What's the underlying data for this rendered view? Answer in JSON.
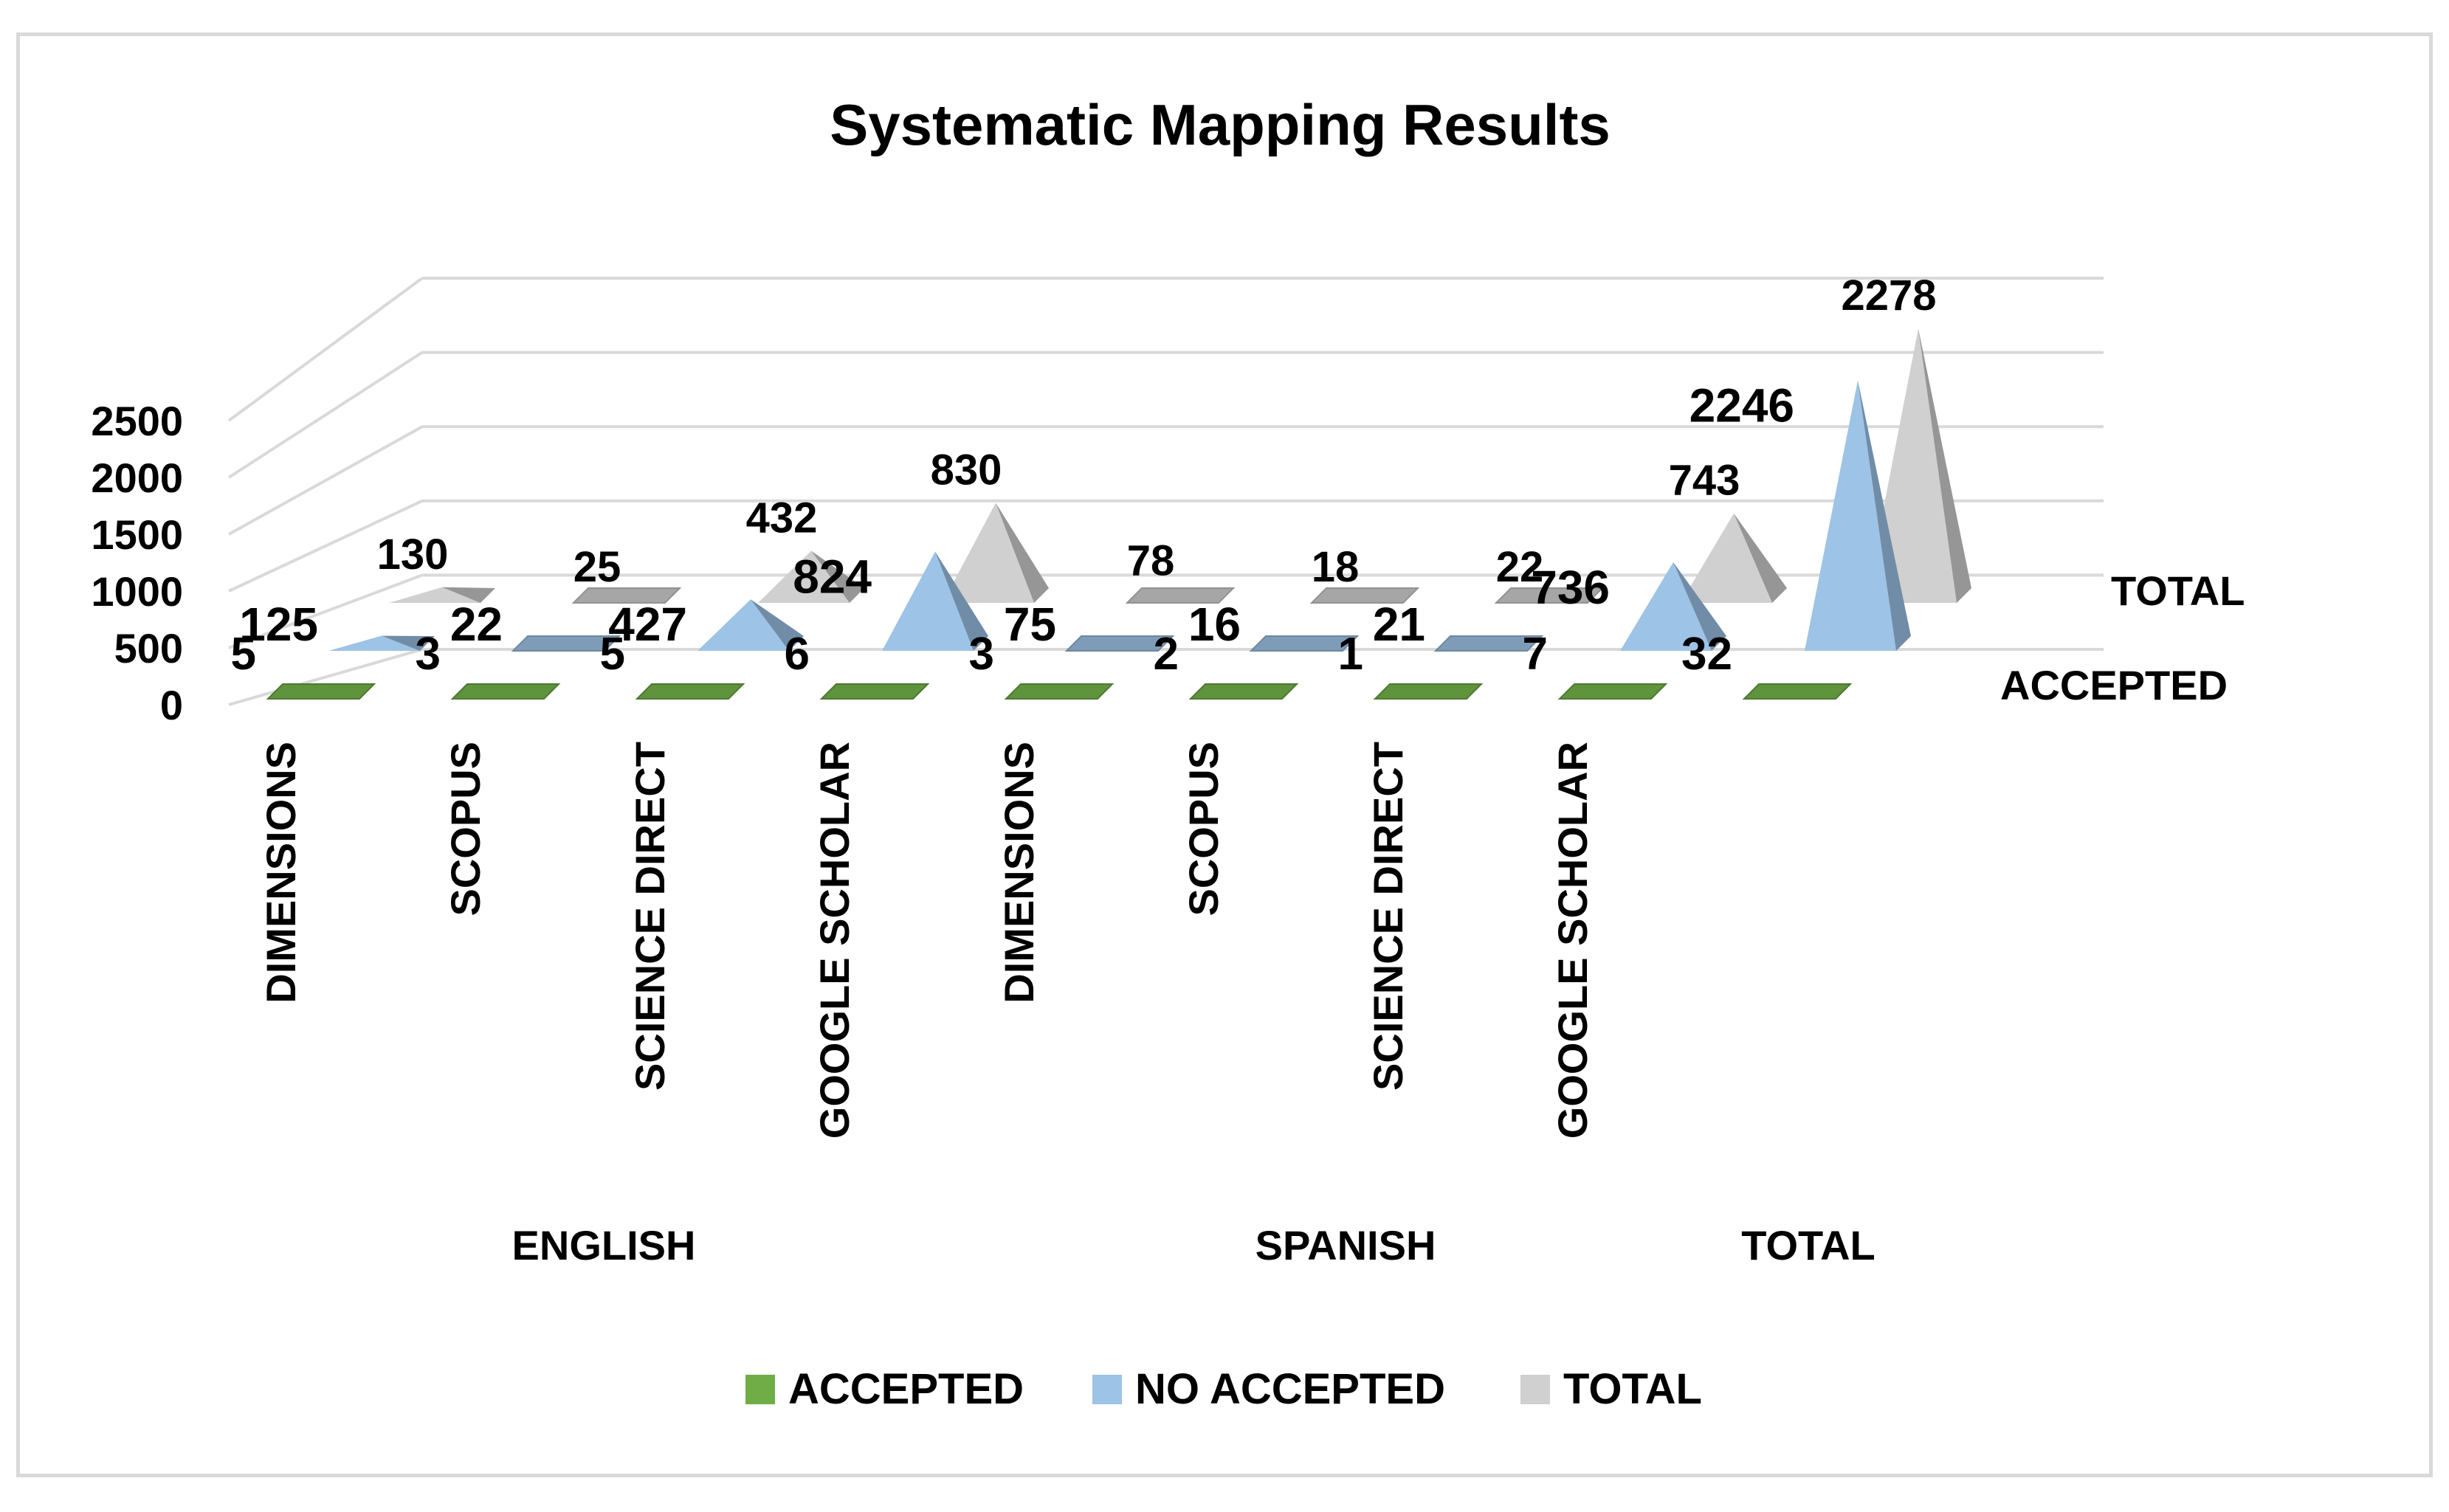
{
  "chart_data": {
    "type": "bar",
    "subtype": "3d-pyramid",
    "title": "Systematic Mapping Results",
    "categories": [
      "DIMENSIONS",
      "SCOPUS",
      "SCIENCE DIRECT",
      "GOOGLE SCHOLAR",
      "DIMENSIONS",
      "SCOPUS",
      "SCIENCE DIRECT",
      "GOOGLE SCHOLAR",
      ""
    ],
    "category_groups": [
      {
        "label": "ENGLISH",
        "count": 4
      },
      {
        "label": "SPANISH",
        "count": 4
      },
      {
        "label": "TOTAL",
        "count": 1
      }
    ],
    "series": [
      {
        "name": "ACCEPTED",
        "color": "#70ad47",
        "values": [
          5,
          3,
          5,
          6,
          3,
          2,
          1,
          7,
          32
        ]
      },
      {
        "name": "NO ACCEPTED",
        "color": "#9dc3e6",
        "values": [
          125,
          22,
          427,
          824,
          75,
          16,
          21,
          736,
          2246
        ]
      },
      {
        "name": "TOTAL",
        "color": "#d0d0d0",
        "values": [
          130,
          25,
          432,
          830,
          78,
          18,
          22,
          743,
          2278
        ]
      }
    ],
    "depth_axis_labels": [
      "TOTAL",
      "ACCEPTED"
    ],
    "y_ticks": [
      "0",
      "500",
      "1000",
      "1500",
      "2000",
      "2500"
    ],
    "ylim": [
      0,
      2500
    ],
    "grid": true,
    "legend": "bottom"
  }
}
